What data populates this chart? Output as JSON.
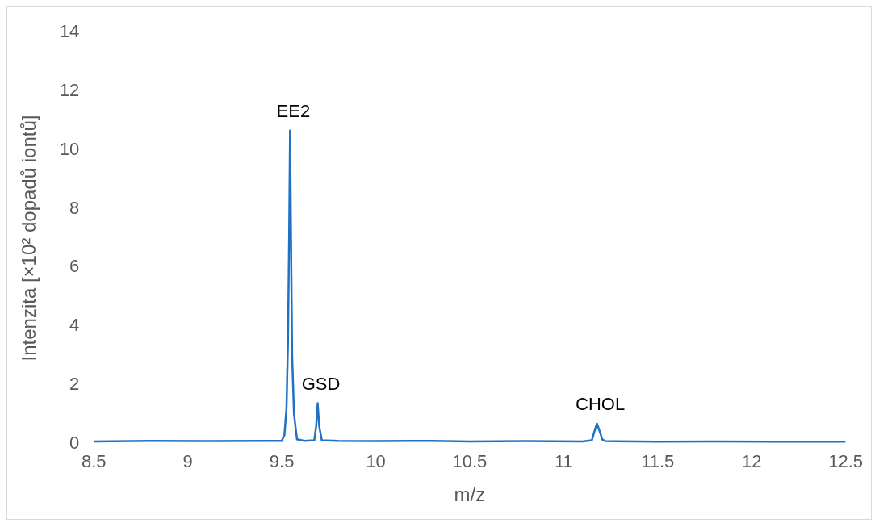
{
  "chart_data": {
    "type": "line",
    "xlabel": "m/z",
    "ylabel": "Intenzita [×10² dopadů iontů]",
    "xlim": [
      8.5,
      12.5
    ],
    "xticks": [
      {
        "value": 8.5,
        "label": "8.5"
      },
      9,
      {
        "value": 9.5,
        "label": "9.5"
      },
      10,
      {
        "value": 10.5,
        "label": "10.5"
      },
      11,
      {
        "value": 11.5,
        "label": "11.5"
      },
      12,
      {
        "value": 12.5,
        "label": "12.5"
      }
    ],
    "ylim": [
      0,
      14
    ],
    "yticks": [
      0,
      2,
      4,
      6,
      8,
      10,
      12,
      14
    ],
    "grid": false,
    "legend": false,
    "marker": "none",
    "line_style": "solid",
    "series": [
      {
        "color": "#1f72c4",
        "x": [
          8.5,
          8.8,
          9.1,
          9.4,
          9.5,
          9.514,
          9.525,
          9.533,
          9.539,
          9.544,
          9.549,
          9.555,
          9.565,
          9.581,
          9.62,
          9.673,
          9.683,
          9.691,
          9.699,
          9.713,
          9.8,
          10.0,
          10.3,
          10.5,
          10.8,
          11.1,
          11.15,
          11.165,
          11.177,
          11.19,
          11.205,
          11.22,
          11.5,
          11.8,
          12.1,
          12.5
        ],
        "values": [
          0.08,
          0.1,
          0.09,
          0.1,
          0.1,
          0.3,
          1.2,
          3.5,
          7,
          10.66,
          7,
          3,
          1,
          0.15,
          0.1,
          0.12,
          0.6,
          1.38,
          0.6,
          0.12,
          0.1,
          0.09,
          0.1,
          0.08,
          0.09,
          0.08,
          0.12,
          0.45,
          0.69,
          0.45,
          0.15,
          0.09,
          0.07,
          0.08,
          0.07,
          0.07
        ]
      }
    ],
    "annotations": [
      {
        "text": "EE2",
        "x": 9.544,
        "y": 10.66
      },
      {
        "text": "GSD",
        "x": 9.691,
        "y": 1.38
      },
      {
        "text": "CHOL",
        "x": 11.177,
        "y": 0.69
      }
    ]
  }
}
